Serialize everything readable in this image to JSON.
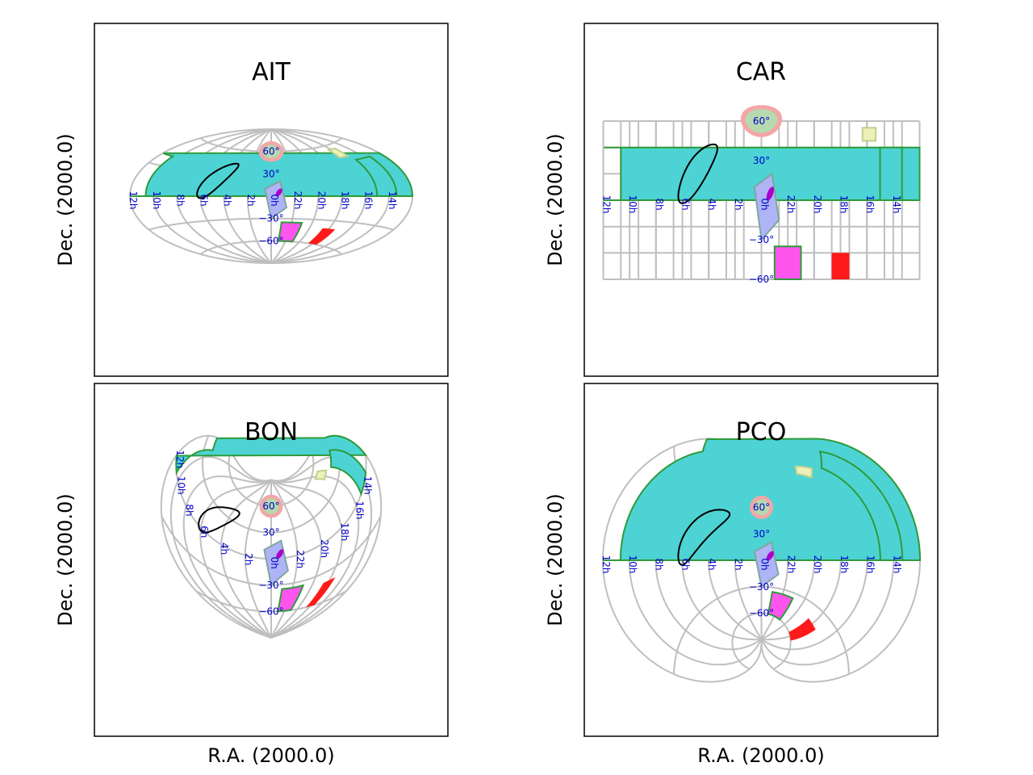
{
  "chart_data": [
    {
      "type": "map",
      "projection": "AIT",
      "title": "AIT",
      "ylabel": "Dec. (2000.0)",
      "xlabel": "",
      "ra_tick_labels": [
        "12h",
        "10h",
        "8h",
        "6h",
        "4h",
        "2h",
        "0h",
        "22h",
        "20h",
        "18h",
        "16h",
        "14h"
      ],
      "dec_tick_labels": [
        "60°",
        "30°",
        "−30°",
        "−60°"
      ],
      "grid": true
    },
    {
      "type": "map",
      "projection": "CAR",
      "title": "CAR",
      "ylabel": "Dec. (2000.0)",
      "xlabel": "",
      "ra_tick_labels": [
        "12h",
        "10h",
        "8h",
        "6h",
        "4h",
        "2h",
        "0h",
        "22h",
        "20h",
        "18h",
        "16h",
        "14h"
      ],
      "dec_tick_labels": [
        "60°",
        "30°",
        "−30°",
        "−60°"
      ],
      "grid": true
    },
    {
      "type": "map",
      "projection": "BON",
      "title": "BON",
      "ylabel": "Dec. (2000.0)",
      "xlabel": "R.A. (2000.0)",
      "ra_tick_labels": [
        "12h",
        "10h",
        "8h",
        "6h",
        "4h",
        "2h",
        "0h",
        "22h",
        "20h",
        "18h",
        "16h",
        "14h"
      ],
      "dec_tick_labels": [
        "60°",
        "30°",
        "−30°",
        "−60°"
      ],
      "grid": true
    },
    {
      "type": "map",
      "projection": "PCO",
      "title": "PCO",
      "ylabel": "Dec. (2000.0)",
      "xlabel": "R.A. (2000.0)",
      "ra_tick_labels": [
        "12h",
        "10h",
        "8h",
        "6h",
        "4h",
        "2h",
        "0h",
        "22h",
        "20h",
        "18h",
        "16h",
        "14h"
      ],
      "dec_tick_labels": [
        "60°",
        "30°",
        "−30°",
        "−60°"
      ],
      "grid": true
    }
  ],
  "colors": {
    "grid": "#bfbfbf",
    "tick_label": "#0000cc",
    "cyan_patch": "#4dd3d3",
    "patch_edge": "#2e9b3a",
    "yellow_patch": "#eef0b8",
    "pink_ring": "#f3a6a6",
    "green_patch": "#b6d9b0",
    "blue_rect": "#aeb4f5",
    "magenta_ellipse": "#aa00cc",
    "pink_patch": "#ff55ee",
    "red_patch": "#ff1a1a",
    "black_ellipse": "#000000"
  }
}
